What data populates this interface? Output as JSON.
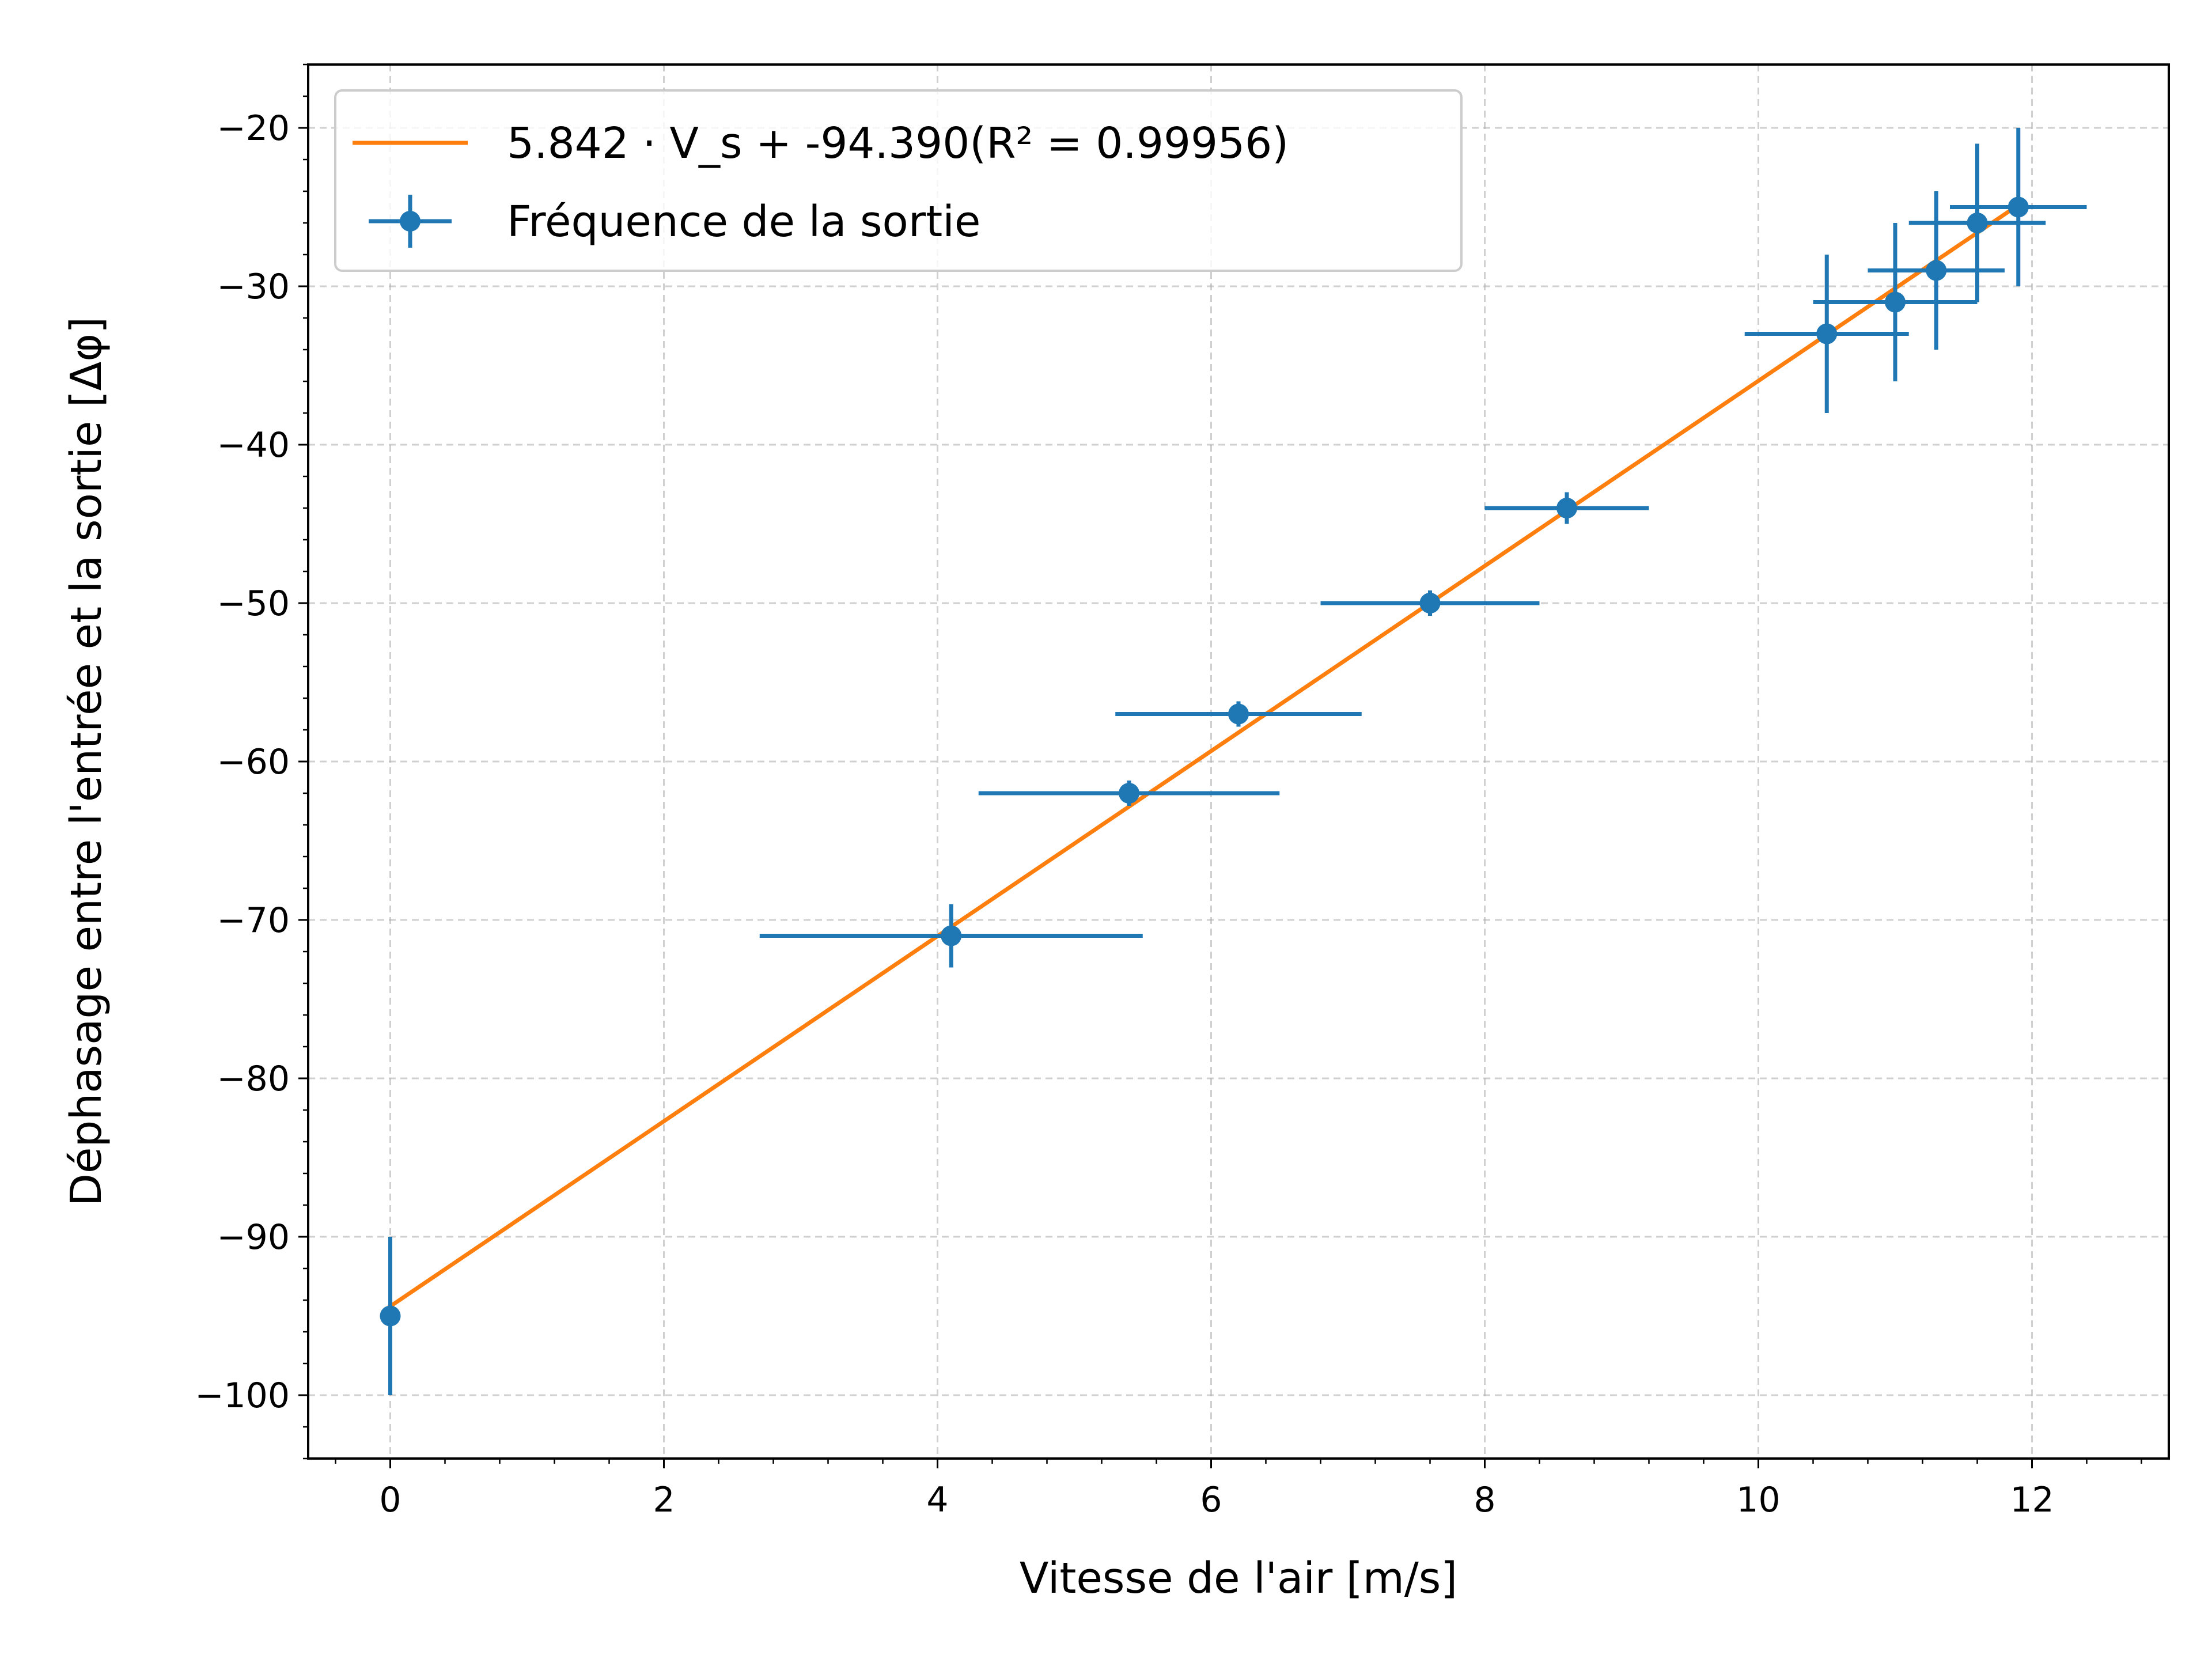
{
  "chart_data": {
    "type": "scatter",
    "xlabel": "Vitesse de l'air [m/s]",
    "ylabel": "Déphasage entre l'entrée et la sortie [Δφ]",
    "xlim": [
      -0.6,
      13.0
    ],
    "ylim": [
      -104,
      -16
    ],
    "x_ticks": [
      0,
      2,
      4,
      6,
      8,
      10,
      12
    ],
    "y_ticks": [
      -20,
      -30,
      -40,
      -50,
      -60,
      -70,
      -80,
      -90,
      -100
    ],
    "x_tick_labels": [
      "0",
      "2",
      "4",
      "6",
      "8",
      "10",
      "12"
    ],
    "y_tick_labels": [
      "−20",
      "−30",
      "−40",
      "−50",
      "−60",
      "−70",
      "−80",
      "−90",
      "−100"
    ],
    "grid": true,
    "legend_position": "top-left",
    "fit_line": {
      "label": "5.842 · V_s + -94.390(R² = 0.99956)",
      "slope": 5.842,
      "intercept": -94.39,
      "x_range": [
        0,
        11.9
      ],
      "color": "#ff7f0e"
    },
    "series": [
      {
        "name": "Fréquence de la sortie",
        "color": "#1f77b4",
        "points": [
          {
            "x": 0,
            "y": -95,
            "xerr": 0,
            "yerr": 5
          },
          {
            "x": 4.1,
            "y": -71,
            "xerr": 1.4,
            "yerr": 2
          },
          {
            "x": 5.4,
            "y": -62,
            "xerr": 1.1,
            "yerr": 0.8
          },
          {
            "x": 6.2,
            "y": -57,
            "xerr": 0.9,
            "yerr": 0.8
          },
          {
            "x": 7.6,
            "y": -50,
            "xerr": 0.8,
            "yerr": 0.8
          },
          {
            "x": 8.6,
            "y": -44,
            "xerr": 0.6,
            "yerr": 1
          },
          {
            "x": 10.5,
            "y": -33,
            "xerr": 0.6,
            "yerr": 5
          },
          {
            "x": 11.0,
            "y": -31,
            "xerr": 0.6,
            "yerr": 5
          },
          {
            "x": 11.3,
            "y": -29,
            "xerr": 0.5,
            "yerr": 5
          },
          {
            "x": 11.6,
            "y": -26,
            "xerr": 0.5,
            "yerr": 5
          },
          {
            "x": 11.9,
            "y": -25,
            "xerr": 0.5,
            "yerr": 5
          }
        ]
      }
    ]
  }
}
